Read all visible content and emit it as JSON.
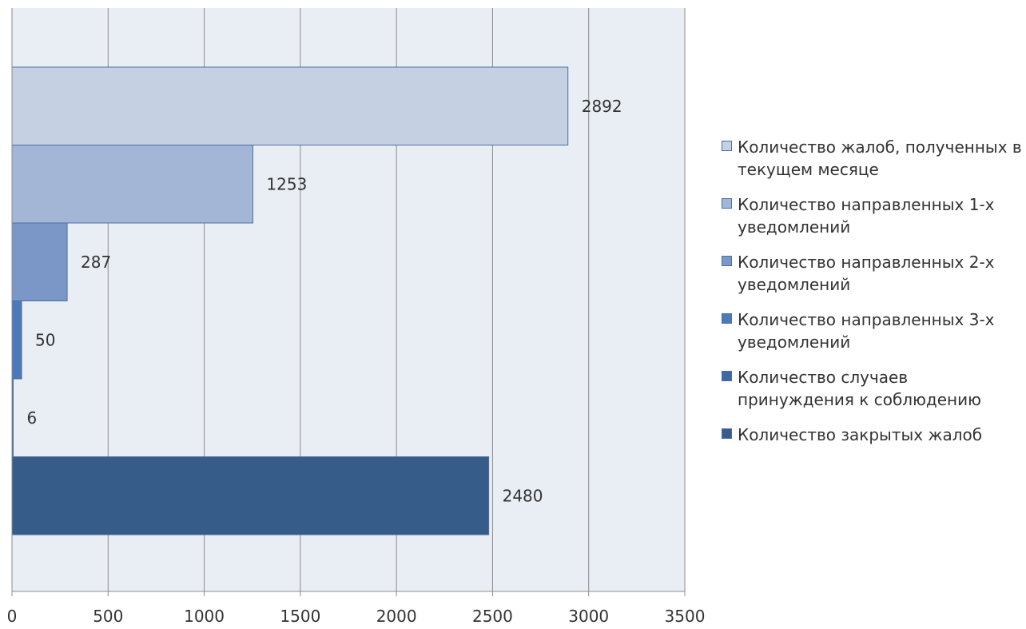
{
  "chart_data": {
    "type": "bar",
    "orientation": "horizontal",
    "title": "",
    "xlabel": "",
    "ylabel": "",
    "xlim": [
      0,
      3500
    ],
    "x_ticks": [
      "0",
      "500",
      "1000",
      "1500",
      "2000",
      "2500",
      "3000",
      "3500"
    ],
    "grid": "vertical",
    "legend_position": "right",
    "series": [
      {
        "name": "Количество жалоб, полученных в текущем месяце",
        "value": 2892,
        "label": "2892",
        "color": "#c5d0e3"
      },
      {
        "name": "Количество направленных 1-х уведомлений",
        "value": 1253,
        "label": "1253",
        "color": "#a3b6d6"
      },
      {
        "name": "Количество направленных 2-х уведомлений",
        "value": 287,
        "label": "287",
        "color": "#7b97c8"
      },
      {
        "name": "Количество направленных 3-х уведомлений",
        "value": 50,
        "label": "50",
        "color": "#4d79b8"
      },
      {
        "name": "Количество случаев принуждения к соблюдению",
        "value": 6,
        "label": "6",
        "color": "#3e68a2"
      },
      {
        "name": "Количество закрытых жалоб",
        "value": 2480,
        "label": "2480",
        "color": "#365c8a"
      }
    ],
    "plot_background": "#e9edf4"
  }
}
